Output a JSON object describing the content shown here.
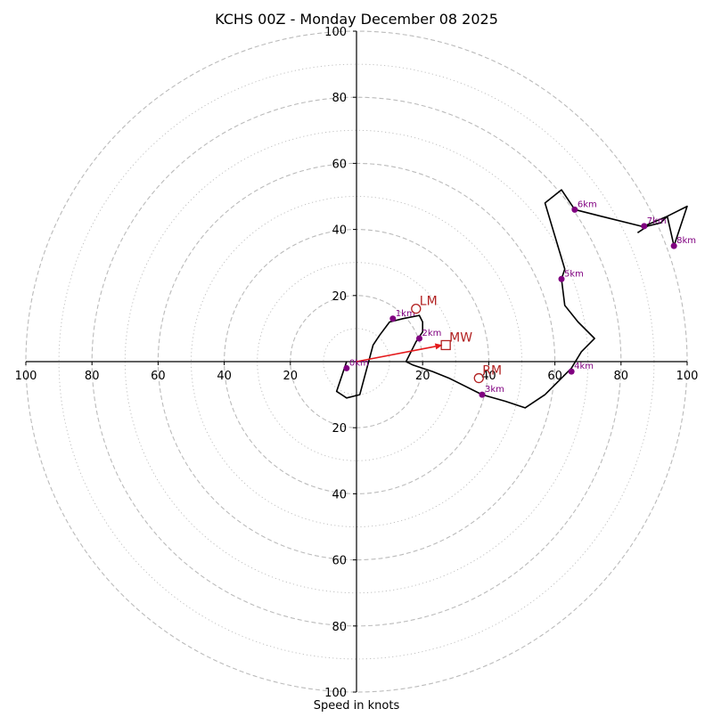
{
  "chart_data": {
    "type": "line",
    "title": "KCHS 00Z - Monday December 08 2025",
    "xlabel": "Speed in knots",
    "ylabel": "",
    "xlim": [
      -100,
      100
    ],
    "ylim": [
      -100,
      100
    ],
    "rings": {
      "major": [
        20,
        40,
        60,
        80,
        100
      ],
      "minor": [
        10,
        30,
        50,
        70,
        90
      ]
    },
    "x_ticks": [
      {
        "value": -100,
        "label": "100"
      },
      {
        "value": -80,
        "label": "80"
      },
      {
        "value": -60,
        "label": "60"
      },
      {
        "value": -40,
        "label": "40"
      },
      {
        "value": -20,
        "label": "20"
      },
      {
        "value": 20,
        "label": "20"
      },
      {
        "value": 40,
        "label": "40"
      },
      {
        "value": 60,
        "label": "60"
      },
      {
        "value": 80,
        "label": "80"
      },
      {
        "value": 100,
        "label": "100"
      }
    ],
    "y_ticks": [
      {
        "value": 100,
        "label": "100"
      },
      {
        "value": 80,
        "label": "80"
      },
      {
        "value": 60,
        "label": "60"
      },
      {
        "value": 40,
        "label": "40"
      },
      {
        "value": 20,
        "label": "20"
      },
      {
        "value": -20,
        "label": "20"
      },
      {
        "value": -40,
        "label": "40"
      },
      {
        "value": -60,
        "label": "60"
      },
      {
        "value": -80,
        "label": "80"
      },
      {
        "value": -100,
        "label": "100"
      }
    ],
    "hodograph": {
      "color": "#000000",
      "u": [
        -3,
        -6,
        -3,
        1,
        5,
        7,
        10,
        14,
        19,
        20,
        20,
        18,
        15,
        17,
        23,
        28,
        38,
        45,
        51,
        57,
        62,
        65,
        68,
        72,
        67,
        63,
        62,
        63,
        60,
        57,
        62,
        66,
        74,
        86,
        87,
        94,
        96,
        100,
        94,
        92,
        88,
        85
      ],
      "v": [
        0,
        -9,
        -11,
        -10,
        5,
        8,
        12,
        13,
        14,
        12,
        9,
        6,
        0,
        -1,
        -3,
        -5,
        -10,
        -12,
        -14,
        -10,
        -5,
        -2,
        3,
        7,
        12,
        17,
        25,
        28,
        38,
        48,
        52,
        46,
        44,
        41,
        41,
        44,
        35,
        47,
        44,
        42,
        41,
        39
      ]
    },
    "height_markers": [
      {
        "label": "0km",
        "u": -3,
        "v": -2
      },
      {
        "label": "1km",
        "u": 11,
        "v": 13
      },
      {
        "label": "2km",
        "u": 19,
        "v": 7
      },
      {
        "label": "3km",
        "u": 38,
        "v": -10
      },
      {
        "label": "4km",
        "u": 65,
        "v": -3
      },
      {
        "label": "5km",
        "u": 62,
        "v": 25
      },
      {
        "label": "6km",
        "u": 66,
        "v": 46
      },
      {
        "label": "7km",
        "u": 87,
        "v": 41
      },
      {
        "label": "8km",
        "u": 96,
        "v": 35
      }
    ],
    "motions": [
      {
        "label": "LM",
        "u": 18,
        "v": 16,
        "marker": "circle"
      },
      {
        "label": "RM",
        "u": 37,
        "v": -5,
        "marker": "circle"
      },
      {
        "label": "MW",
        "u": 27,
        "v": 5,
        "marker": "square"
      }
    ],
    "shear_vector": {
      "from": [
        0,
        0
      ],
      "to": [
        26,
        5
      ],
      "color": "#e41a1c"
    },
    "colors": {
      "ring": "#bbbbbb",
      "axis": "#000000",
      "hodograph": "#000000",
      "height_marker": "#800080",
      "motion": "#b22222",
      "shear_vector": "#e41a1c"
    }
  }
}
